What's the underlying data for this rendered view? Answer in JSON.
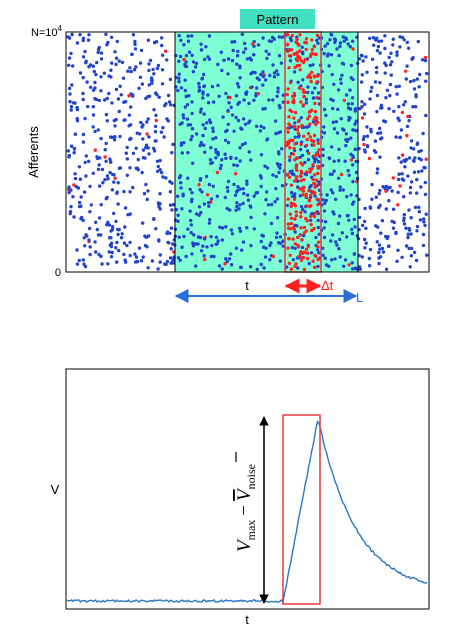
{
  "colors": {
    "background": "#ffffff",
    "pattern_fill": "#7fffd4",
    "pattern_label_bg": "#40e0c0",
    "blue_spike": "#2244cc",
    "red_spike": "#ff2222",
    "window_outline": "#e23a3a",
    "span_arrow": "#2a6fd6",
    "delta_arrow": "#ff2020",
    "trace": "#2b78c8",
    "axis": "#000000"
  },
  "raster": {
    "pattern_label": "Pattern",
    "ylabel": "Afferents",
    "y_top_label_base": "N=10",
    "y_top_label_exp": "4",
    "y_bottom_label": "0",
    "t_label": "t",
    "dt_label": "Δt",
    "L_label": "L"
  },
  "trace": {
    "ylabel": "V",
    "xlabel": "t",
    "annotation": {
      "vmax_base": "V",
      "vmax_sub": "max",
      "minus": "−",
      "vnoise_base": "V",
      "vnoise_sub": "noise"
    }
  }
}
